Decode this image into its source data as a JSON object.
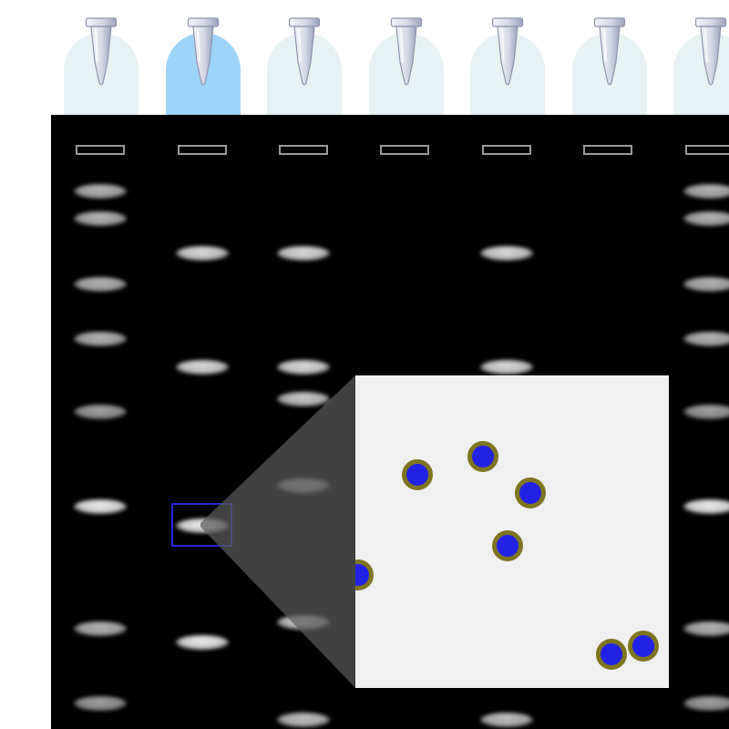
{
  "tubes": [
    {
      "selected": false
    },
    {
      "selected": true
    },
    {
      "selected": false
    },
    {
      "selected": false
    },
    {
      "selected": false
    },
    {
      "selected": false
    },
    {
      "selected": false
    }
  ],
  "colors": {
    "tube_slot": "#e8f2f4",
    "tube_slot_selected": "#9fd4fa",
    "gel_background": "#000000",
    "zoom_selector": "#2727d9",
    "zoom_panel": "#f0f0f0",
    "particle_fill": "#2222e6",
    "particle_outline": "#7e7520"
  },
  "icons": {
    "tube": "microcentrifuge-tube-icon"
  }
}
